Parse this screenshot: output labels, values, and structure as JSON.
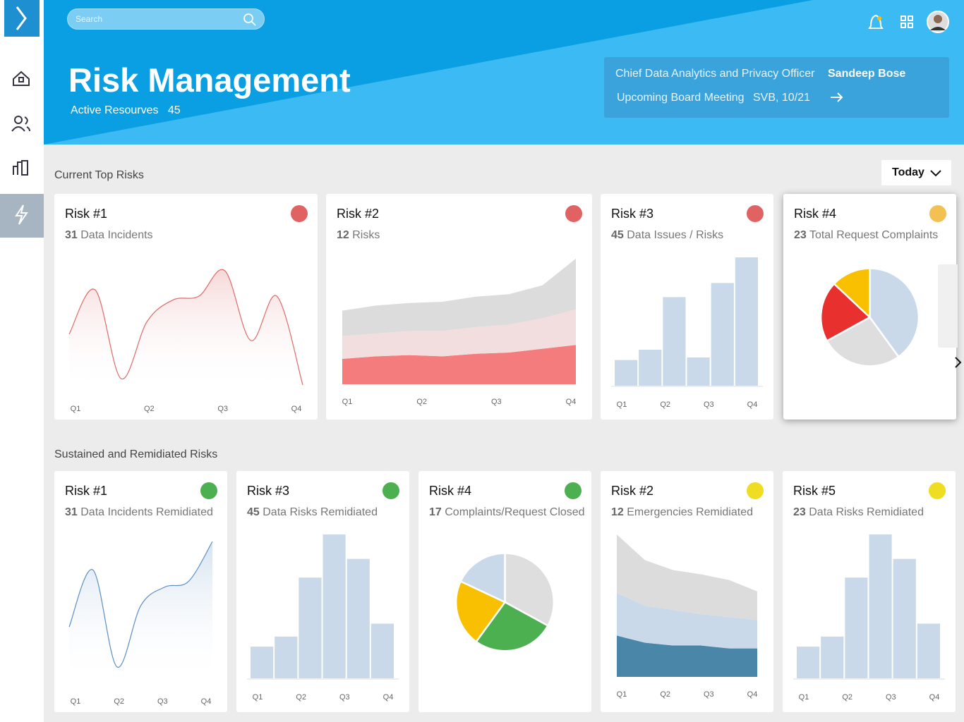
{
  "header": {
    "search_placeholder": "Search",
    "title": "Risk Management",
    "active_label": "Active Resourves",
    "active_value": 45
  },
  "info": {
    "officer_label": "Chief Data Analytics and Privacy Officer",
    "officer_name": "Sandeep Bose",
    "meeting_label": "Upcoming Board Meeting",
    "meeting_value": "SVB, 10/21"
  },
  "filter": "Today",
  "sections": [
    {
      "title": "Current Top Risks",
      "cards": [
        {
          "title": "Risk #1",
          "count": 31,
          "label": "Data Incidents",
          "status_color": "#e06262",
          "chart": {
            "type": "line",
            "color": "#e06a6a",
            "fill": "#f6d8d8",
            "axis_labels": [
              "Q1",
              "Q2",
              "Q3",
              "Q4"
            ],
            "ylim": [
              0,
              100
            ],
            "values": [
              45,
              80,
              10,
              55,
              72,
              75,
              95,
              40,
              75,
              5
            ]
          }
        },
        {
          "title": "Risk #2",
          "count": 12,
          "label": "Risks",
          "status_color": "#e06262",
          "chart": {
            "type": "area",
            "axis_labels": [
              "Q1",
              "Q2",
              "Q3",
              "Q4"
            ],
            "ylim": [
              0,
              100
            ],
            "series": [
              {
                "color": "#f47c7c",
                "values": [
                  20,
                  22,
                  23,
                  22,
                  24,
                  25,
                  28,
                  31
                ]
              },
              {
                "color": "#f2dede",
                "values": [
                  18,
                  18,
                  19,
                  20,
                  21,
                  22,
                  24,
                  28
                ]
              },
              {
                "color": "#dcdcdc",
                "values": [
                  20,
                  22,
                  22,
                  23,
                  24,
                  24,
                  26,
                  40
                ]
              }
            ]
          }
        },
        {
          "title": "Risk #3",
          "count": 45,
          "label": "Data Issues / Risks",
          "status_color": "#e06262",
          "chart": {
            "type": "bar",
            "color": "#c9d9ea",
            "axis_labels": [
              "Q1",
              "Q2",
              "Q3",
              "Q4"
            ],
            "ylim": [
              0,
              100
            ],
            "values": [
              20,
              28,
              69,
              22,
              80,
              100
            ]
          }
        },
        {
          "title": "Risk #4",
          "count": 23,
          "label": "Total Request Complaints",
          "status_color": "#f3c052",
          "chart": {
            "type": "pie",
            "values": [
              40,
              27,
              20,
              13
            ],
            "colors": [
              "#c9d9ea",
              "#dedede",
              "#e8302e",
              "#f8c000"
            ]
          }
        }
      ]
    },
    {
      "title": "Sustained and Remidiated Risks",
      "cards": [
        {
          "title": "Risk #1",
          "count": 31,
          "label": "Data Incidents Remidiated",
          "status_color": "#4caf50",
          "chart": {
            "type": "line",
            "color": "#5b8fc2",
            "fill": "#d6e3f0",
            "axis_labels": [
              "Q1",
              "Q2",
              "Q3",
              "Q4"
            ],
            "ylim": [
              0,
              100
            ],
            "values": [
              40,
              80,
              12,
              55,
              68,
              72,
              100
            ]
          }
        },
        {
          "title": "Risk #3",
          "count": 45,
          "label": "Data Risks Remidiated",
          "status_color": "#4caf50",
          "chart": {
            "type": "bar",
            "color": "#c9d9ea",
            "axis_labels": [
              "Q1",
              "Q2",
              "Q3",
              "Q4"
            ],
            "ylim": [
              0,
              100
            ],
            "values": [
              22,
              29,
              70,
              100,
              83,
              38
            ]
          }
        },
        {
          "title": "Risk #4",
          "count": 17,
          "label": "Complaints/Request Closed",
          "status_color": "#4caf50",
          "chart": {
            "type": "pie",
            "values": [
              33,
              27,
              22,
              18
            ],
            "colors": [
              "#dedede",
              "#4caf50",
              "#f8c000",
              "#c9d9ea"
            ]
          }
        },
        {
          "title": "Risk #2",
          "count": 12,
          "label": "Emergencies Remidiated",
          "status_color": "#eedd22",
          "chart": {
            "type": "area",
            "axis_labels": [
              "Q1",
              "Q2",
              "Q3",
              "Q4"
            ],
            "ylim": [
              0,
              100
            ],
            "series": [
              {
                "color": "#4a86a8",
                "values": [
                  29,
                  24,
                  22,
                  22,
                  20,
                  20
                ]
              },
              {
                "color": "#c9d9ea",
                "values": [
                  30,
                  26,
                  25,
                  22,
                  22,
                  20
                ]
              },
              {
                "color": "#dcdcdc",
                "values": [
                  41,
                  32,
                  28,
                  28,
                  26,
                  20
                ]
              }
            ]
          }
        },
        {
          "title": "Risk #5",
          "count": 23,
          "label": "Data Risks Remidiated",
          "status_color": "#eedd22",
          "chart": {
            "type": "bar",
            "color": "#c9d9ea",
            "axis_labels": [
              "Q1",
              "Q2",
              "Q3",
              "Q4"
            ],
            "ylim": [
              0,
              100
            ],
            "values": [
              22,
              29,
              70,
              100,
              83,
              38
            ]
          }
        }
      ]
    }
  ]
}
